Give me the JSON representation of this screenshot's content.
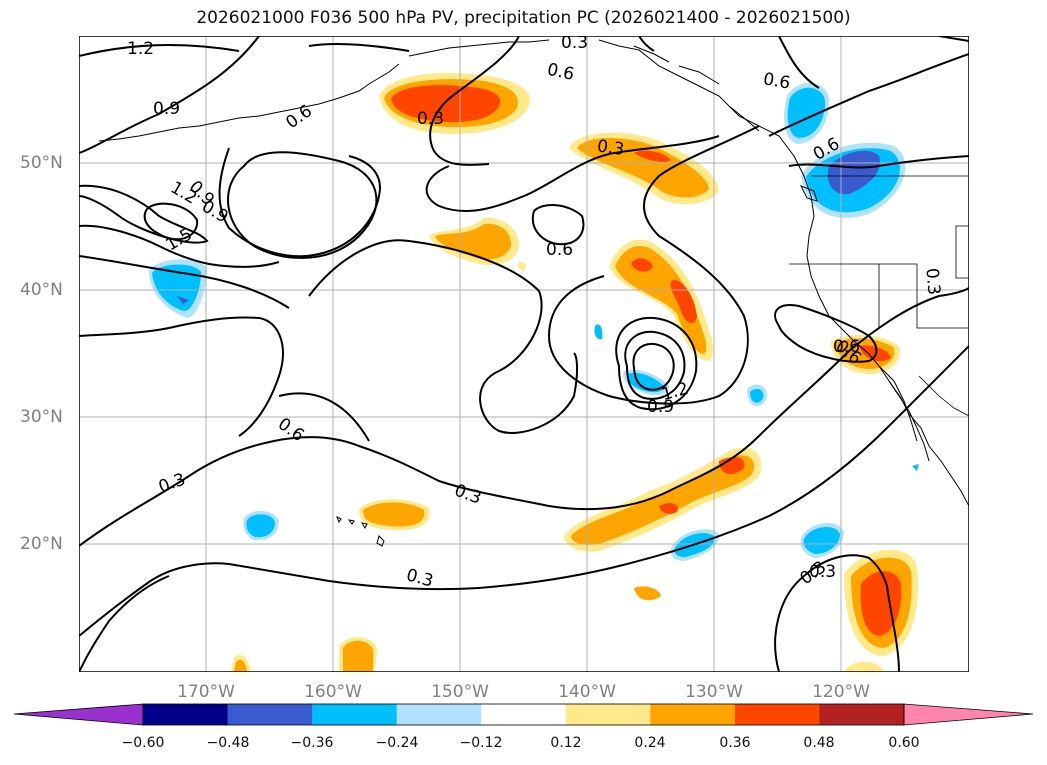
{
  "title": "2026021000 F036 500 hPa PV, precipitation PC (2026021400 - 2026021500)",
  "map": {
    "longitude_labels": [
      "170°W",
      "160°W",
      "150°W",
      "140°W",
      "130°W",
      "120°W"
    ],
    "latitude_labels": [
      "50°N",
      "40°N",
      "30°N",
      "20°N"
    ],
    "contour_labels": [
      "1.2",
      "0.9",
      "0.6",
      "0.3",
      "0.9",
      "1.2",
      "0.9",
      "1.5",
      "0.6",
      "0.3",
      "0.6",
      "0.6",
      "0.3",
      "0.6",
      "0.6",
      "0.3",
      "0.3",
      "1.2",
      "0.9",
      "0.6",
      "0.3",
      "0.3",
      "0.3",
      "0.3",
      "0.6"
    ]
  },
  "colorbar": {
    "ticks": [
      "−0.60",
      "−0.48",
      "−0.36",
      "−0.24",
      "−0.12",
      "0.12",
      "0.24",
      "0.36",
      "0.48",
      "0.60"
    ],
    "colors": [
      "#9b30d0",
      "#00008b",
      "#3a5bd0",
      "#00bfff",
      "#b0e2ff",
      "#ffffff",
      "#ffe98a",
      "#ffa500",
      "#ff4500",
      "#b22222",
      "#ff85ac"
    ]
  }
}
